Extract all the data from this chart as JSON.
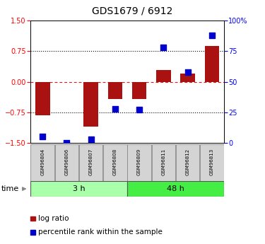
{
  "title": "GDS1679 / 6912",
  "samples": [
    "GSM96804",
    "GSM96806",
    "GSM96807",
    "GSM96808",
    "GSM96809",
    "GSM96811",
    "GSM96812",
    "GSM96813"
  ],
  "log_ratio": [
    -0.82,
    0.0,
    -1.1,
    -0.42,
    -0.42,
    0.28,
    0.2,
    0.88
  ],
  "percentile_rank": [
    5,
    0,
    3,
    28,
    27,
    78,
    58,
    88
  ],
  "group_3h": [
    0,
    1,
    2,
    3
  ],
  "group_48h": [
    4,
    5,
    6,
    7
  ],
  "group_3h_label": "3 h",
  "group_48h_label": "48 h",
  "group_3h_color": "#aaffaa",
  "group_48h_color": "#44ee44",
  "ylim_left": [
    -1.5,
    1.5
  ],
  "yticks_left": [
    -1.5,
    -0.75,
    0,
    0.75,
    1.5
  ],
  "ylim_right": [
    0,
    100
  ],
  "ytick_labels_right": [
    "0",
    "25",
    "50",
    "75",
    "100%"
  ],
  "bar_color": "#aa1111",
  "dot_color": "#0000cc",
  "bar_width": 0.6,
  "dot_size": 30,
  "legend_bar_label": "log ratio",
  "legend_dot_label": "percentile rank within the sample",
  "left_tick_color": "red",
  "right_tick_color": "blue",
  "title_fontsize": 10,
  "tick_fontsize": 7,
  "sample_fontsize": 5,
  "group_fontsize": 8,
  "legend_fontsize": 7.5
}
